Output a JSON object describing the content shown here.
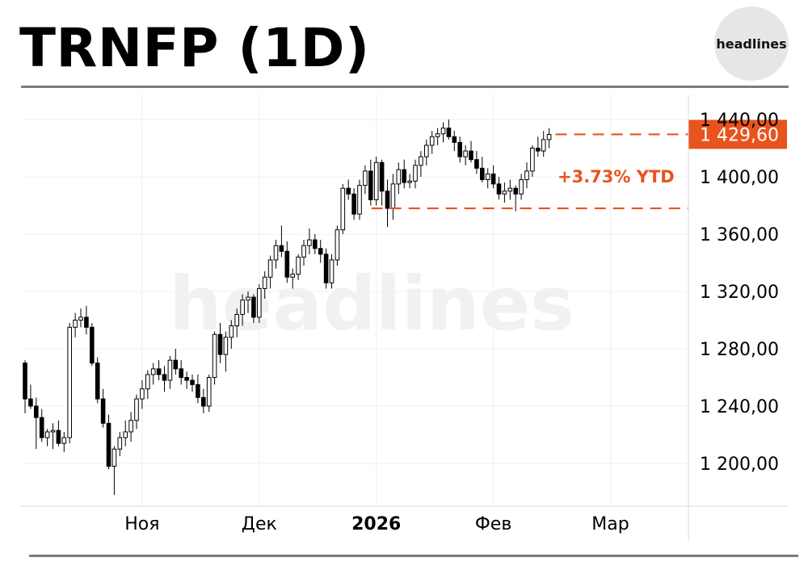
{
  "header": {
    "title": "TRNFP (1D)",
    "brand": "headlines"
  },
  "watermark_text": "headlines",
  "colors": {
    "accent": "#e8541e",
    "candle_up_fill": "#ffffff",
    "candle_down_fill": "#000000",
    "candle_outline": "#000000",
    "grid": "#f0f0f0",
    "rule": "#7a7a7a"
  },
  "chart_data": {
    "type": "candlestick",
    "y_ticks": [
      "1 440,00",
      "1 400,00",
      "1 360,00",
      "1 320,00",
      "1 280,00",
      "1 240,00",
      "1 200,00"
    ],
    "y_tick_values": [
      1440,
      1400,
      1360,
      1320,
      1280,
      1240,
      1200
    ],
    "x_ticks": [
      {
        "label": "Ноя",
        "bold": false,
        "index": 21
      },
      {
        "label": "Дек",
        "bold": false,
        "index": 42
      },
      {
        "label": "2026",
        "bold": true,
        "index": 63
      },
      {
        "label": "Фев",
        "bold": false,
        "index": 84
      },
      {
        "label": "Мар",
        "bold": false,
        "index": 105
      }
    ],
    "ylim": [
      1170,
      1450
    ],
    "grid": true,
    "last_price": 1429.6,
    "last_price_label": "1 429,60",
    "ytd_base": 1378,
    "ytd_label": "+3.73% YTD",
    "candles": [
      [
        1270,
        1272,
        1235,
        1245
      ],
      [
        1245,
        1255,
        1238,
        1240
      ],
      [
        1240,
        1246,
        1210,
        1232
      ],
      [
        1232,
        1238,
        1215,
        1218
      ],
      [
        1218,
        1224,
        1212,
        1222
      ],
      [
        1222,
        1228,
        1210,
        1223
      ],
      [
        1223,
        1230,
        1212,
        1214
      ],
      [
        1214,
        1222,
        1208,
        1218
      ],
      [
        1218,
        1298,
        1214,
        1295
      ],
      [
        1295,
        1305,
        1288,
        1300
      ],
      [
        1300,
        1308,
        1295,
        1302
      ],
      [
        1302,
        1310,
        1290,
        1295
      ],
      [
        1295,
        1298,
        1268,
        1270
      ],
      [
        1270,
        1274,
        1242,
        1245
      ],
      [
        1245,
        1252,
        1225,
        1228
      ],
      [
        1228,
        1234,
        1196,
        1198
      ],
      [
        1198,
        1212,
        1178,
        1210
      ],
      [
        1210,
        1222,
        1205,
        1218
      ],
      [
        1218,
        1230,
        1212,
        1222
      ],
      [
        1222,
        1236,
        1215,
        1230
      ],
      [
        1230,
        1248,
        1224,
        1245
      ],
      [
        1245,
        1258,
        1238,
        1252
      ],
      [
        1252,
        1265,
        1245,
        1262
      ],
      [
        1262,
        1270,
        1255,
        1266
      ],
      [
        1266,
        1272,
        1258,
        1262
      ],
      [
        1262,
        1268,
        1250,
        1258
      ],
      [
        1258,
        1275,
        1252,
        1272
      ],
      [
        1272,
        1280,
        1262,
        1266
      ],
      [
        1266,
        1272,
        1255,
        1260
      ],
      [
        1260,
        1264,
        1252,
        1258
      ],
      [
        1258,
        1262,
        1250,
        1255
      ],
      [
        1255,
        1262,
        1242,
        1246
      ],
      [
        1246,
        1252,
        1235,
        1240
      ],
      [
        1240,
        1262,
        1236,
        1260
      ],
      [
        1260,
        1292,
        1255,
        1290
      ],
      [
        1290,
        1298,
        1270,
        1276
      ],
      [
        1276,
        1292,
        1264,
        1288
      ],
      [
        1288,
        1300,
        1280,
        1296
      ],
      [
        1296,
        1308,
        1288,
        1304
      ],
      [
        1304,
        1318,
        1296,
        1314
      ],
      [
        1314,
        1320,
        1305,
        1316
      ],
      [
        1316,
        1318,
        1298,
        1302
      ],
      [
        1302,
        1325,
        1298,
        1322
      ],
      [
        1322,
        1334,
        1315,
        1330
      ],
      [
        1330,
        1345,
        1322,
        1342
      ],
      [
        1342,
        1356,
        1336,
        1352
      ],
      [
        1352,
        1366,
        1344,
        1348
      ],
      [
        1348,
        1355,
        1326,
        1330
      ],
      [
        1330,
        1336,
        1322,
        1332
      ],
      [
        1332,
        1346,
        1328,
        1344
      ],
      [
        1344,
        1356,
        1338,
        1352
      ],
      [
        1352,
        1364,
        1346,
        1356
      ],
      [
        1356,
        1360,
        1346,
        1350
      ],
      [
        1350,
        1356,
        1340,
        1346
      ],
      [
        1346,
        1350,
        1322,
        1326
      ],
      [
        1326,
        1346,
        1322,
        1342
      ],
      [
        1342,
        1366,
        1338,
        1363
      ],
      [
        1363,
        1395,
        1360,
        1392
      ],
      [
        1392,
        1398,
        1384,
        1388
      ],
      [
        1388,
        1392,
        1370,
        1374
      ],
      [
        1374,
        1398,
        1370,
        1394
      ],
      [
        1394,
        1408,
        1388,
        1404
      ],
      [
        1404,
        1412,
        1380,
        1384
      ],
      [
        1384,
        1414,
        1380,
        1410
      ],
      [
        1410,
        1412,
        1380,
        1390
      ],
      [
        1390,
        1398,
        1365,
        1378
      ],
      [
        1378,
        1402,
        1370,
        1395
      ],
      [
        1395,
        1410,
        1388,
        1405
      ],
      [
        1405,
        1412,
        1392,
        1396
      ],
      [
        1396,
        1402,
        1392,
        1397
      ],
      [
        1397,
        1412,
        1392,
        1408
      ],
      [
        1408,
        1418,
        1400,
        1414
      ],
      [
        1414,
        1426,
        1408,
        1422
      ],
      [
        1422,
        1432,
        1416,
        1428
      ],
      [
        1428,
        1434,
        1422,
        1430
      ],
      [
        1430,
        1438,
        1424,
        1434
      ],
      [
        1434,
        1440,
        1426,
        1428
      ],
      [
        1428,
        1432,
        1418,
        1424
      ],
      [
        1424,
        1428,
        1410,
        1414
      ],
      [
        1414,
        1422,
        1408,
        1418
      ],
      [
        1418,
        1425,
        1410,
        1412
      ],
      [
        1412,
        1418,
        1402,
        1406
      ],
      [
        1406,
        1414,
        1396,
        1398
      ],
      [
        1398,
        1406,
        1392,
        1402
      ],
      [
        1402,
        1408,
        1392,
        1395
      ],
      [
        1395,
        1400,
        1384,
        1388
      ],
      [
        1388,
        1396,
        1382,
        1390
      ],
      [
        1390,
        1398,
        1384,
        1392
      ],
      [
        1392,
        1394,
        1376,
        1388
      ],
      [
        1388,
        1402,
        1384,
        1398
      ],
      [
        1398,
        1410,
        1392,
        1404
      ],
      [
        1404,
        1422,
        1400,
        1420
      ],
      [
        1420,
        1428,
        1414,
        1418
      ],
      [
        1418,
        1432,
        1414,
        1426
      ],
      [
        1426,
        1434,
        1420,
        1429.6
      ]
    ]
  }
}
